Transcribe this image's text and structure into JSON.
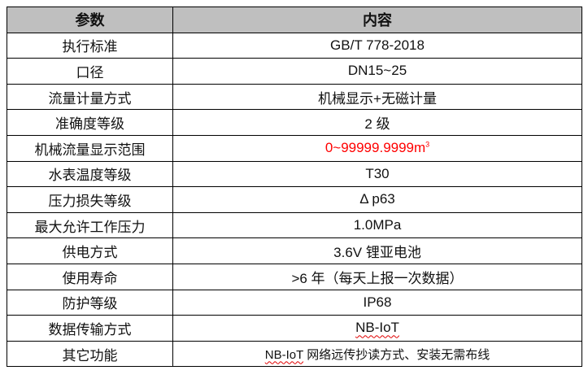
{
  "header": {
    "param": "参数",
    "content": "内容"
  },
  "rows": [
    {
      "param": "执行标准",
      "value": "GB/T 778-2018"
    },
    {
      "param": "口径",
      "value": "DN15~25"
    },
    {
      "param": "流量计量方式",
      "value": "机械显示+无磁计量"
    },
    {
      "param": "准确度等级",
      "value": "2 级"
    },
    {
      "param": "机械流量显示范围",
      "value": "0~99999.9999m",
      "sup": "3",
      "color": "#ff0000"
    },
    {
      "param": "水表温度等级",
      "value": "T30"
    },
    {
      "param": "压力损失等级",
      "value": "Δ p63"
    },
    {
      "param": "最大允许工作压力",
      "value": "1.0MPa"
    },
    {
      "param": "供电方式",
      "value": "3.6V 锂亚电池"
    },
    {
      "param": "使用寿命",
      "value": ">6 年（每天上报一次数据）"
    },
    {
      "param": "防护等级",
      "value": "IP68"
    },
    {
      "param": "数据传输方式",
      "value": "NB-IoT"
    },
    {
      "param": "其它功能",
      "value_prefix": "NB-IoT",
      "value": " 网络远传抄读方式、安装无需布线"
    }
  ],
  "colors": {
    "header_bg": "#bfbfbf",
    "highlight": "#ff0000"
  }
}
